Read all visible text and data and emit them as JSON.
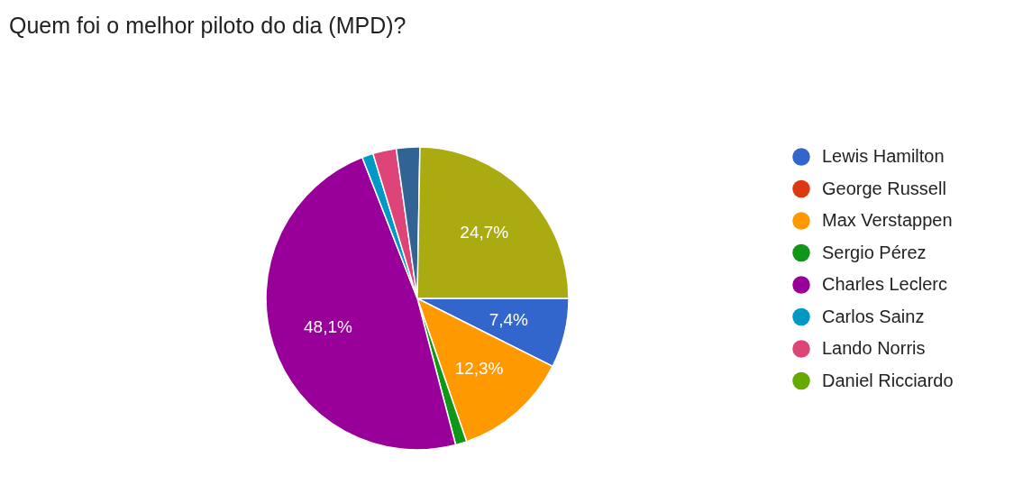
{
  "chart_data": {
    "type": "pie",
    "title": "Quem foi o melhor piloto do dia (MPD)?",
    "categories": [
      "Lewis Hamilton",
      "George Russell",
      "Max Verstappen",
      "Sergio Pérez",
      "Charles Leclerc",
      "Carlos Sainz",
      "Lando Norris",
      "Daniel Ricciardo",
      null,
      null
    ],
    "values": [
      7.4,
      0,
      12.3,
      1.2,
      48.1,
      1.2,
      2.5,
      0,
      2.5,
      24.7
    ],
    "colors": [
      "#3366cc",
      "#dc3912",
      "#ff9900",
      "#109618",
      "#990099",
      "#0099c6",
      "#dd4477",
      "#66aa00",
      "#316395",
      "#aaaa11"
    ],
    "value_labels": [
      "7,4%",
      null,
      "12,3%",
      null,
      "48,1%",
      null,
      null,
      null,
      null,
      "24,7%"
    ],
    "legend": "right"
  }
}
